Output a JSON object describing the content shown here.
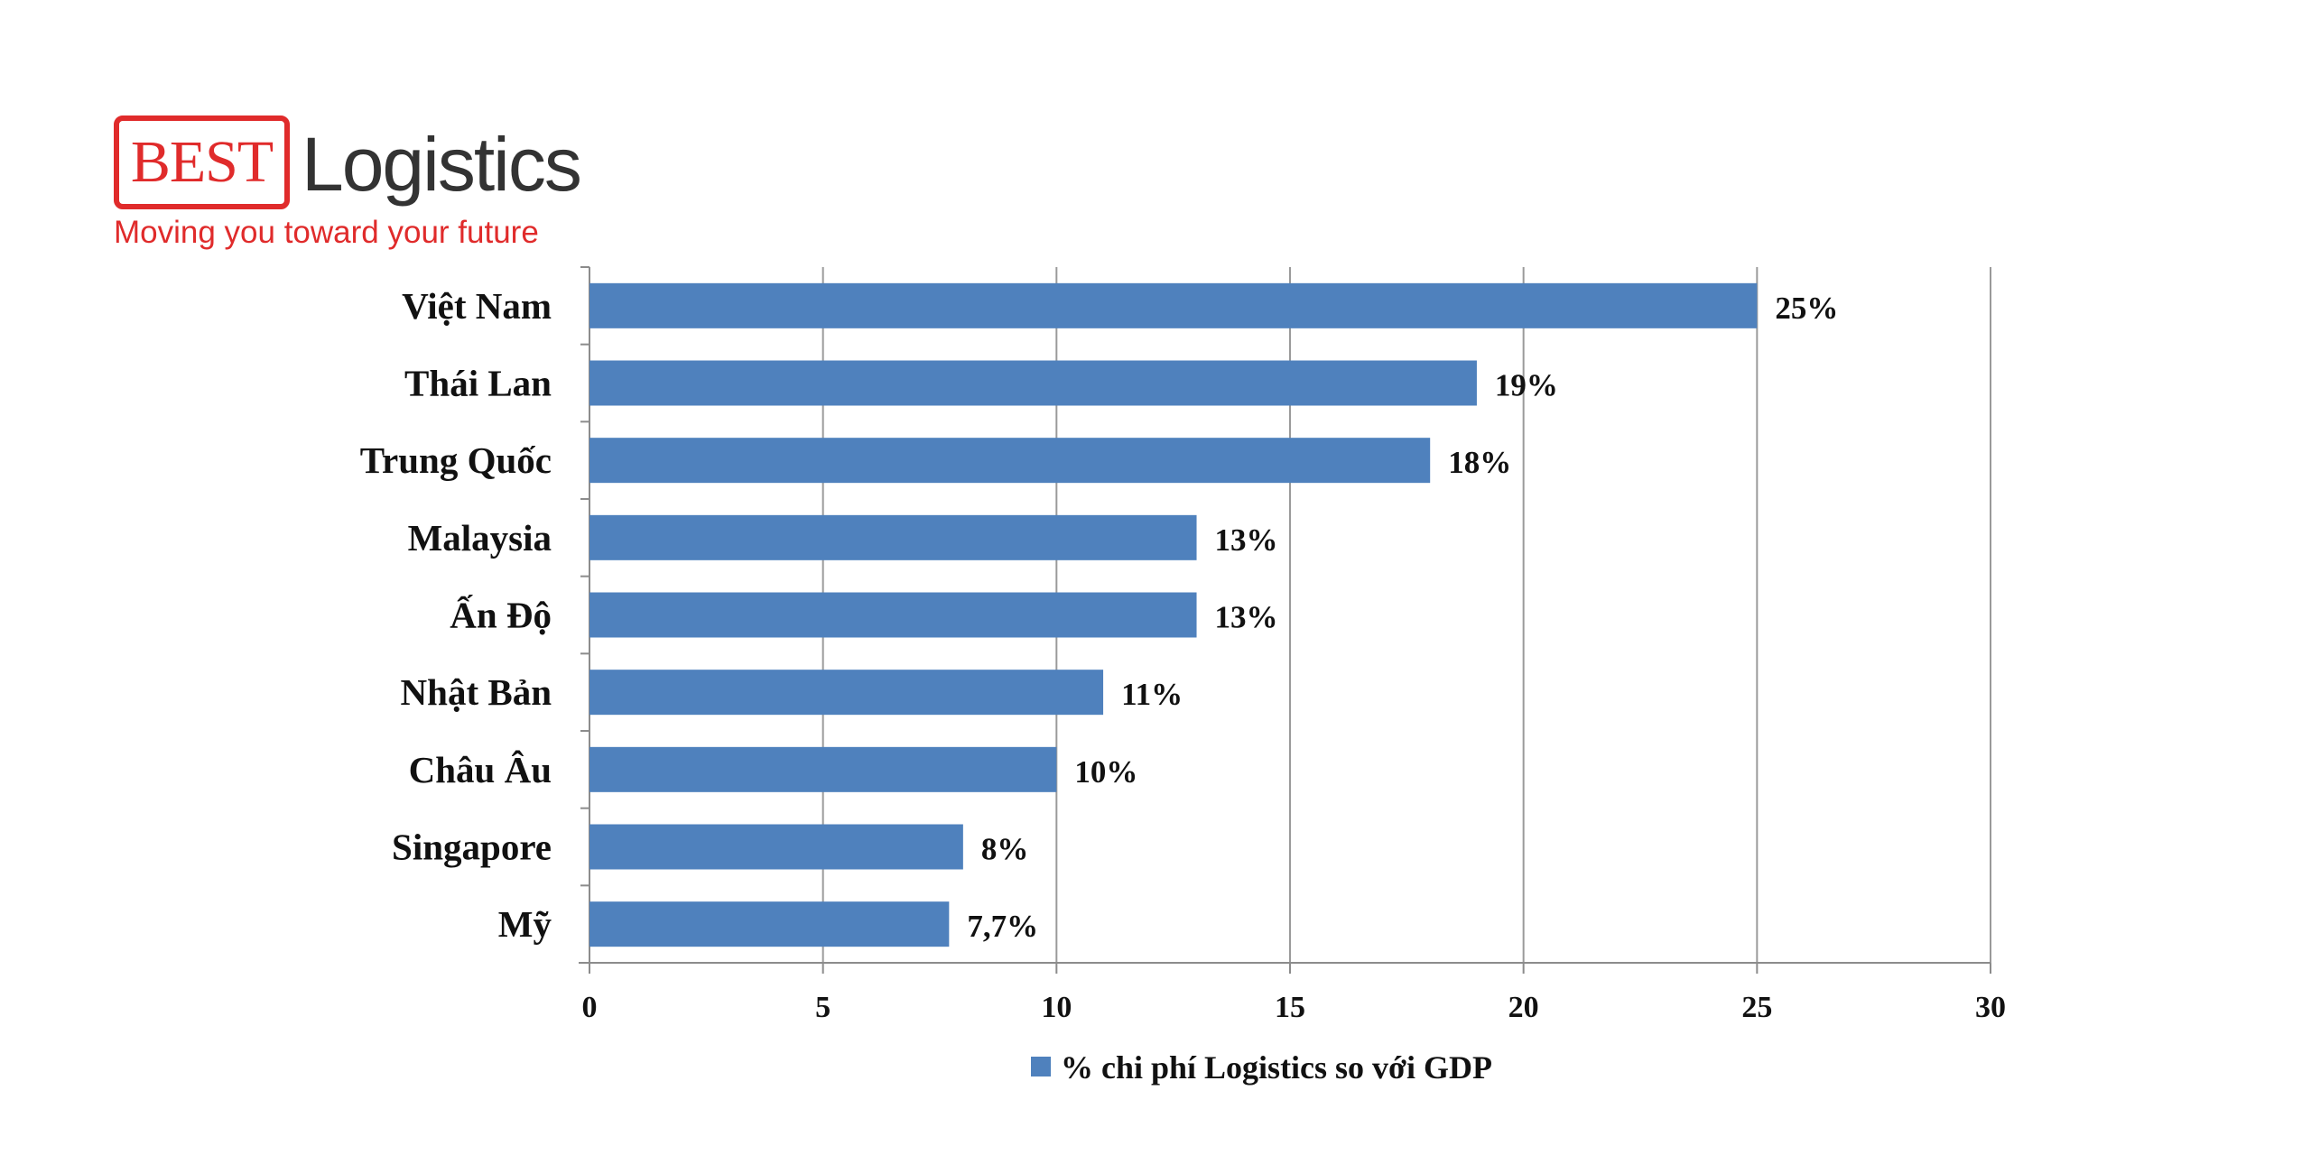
{
  "logo": {
    "box_text": "BEST",
    "word": "Logistics",
    "tagline": "Moving you toward your future"
  },
  "chart_data": {
    "type": "bar",
    "orientation": "horizontal",
    "categories": [
      "Việt Nam",
      "Thái Lan",
      "Trung Quốc",
      "Malaysia",
      "Ấn Độ",
      "Nhật Bản",
      "Châu Âu",
      "Singapore",
      "Mỹ"
    ],
    "values": [
      25,
      19,
      18,
      13,
      13,
      11,
      10,
      8,
      7.7
    ],
    "value_labels": [
      "25%",
      "19%",
      "18%",
      "13%",
      "13%",
      "11%",
      "10%",
      "8%",
      "7,7%"
    ],
    "series": [
      {
        "name": "% chi phí Logistics so với GDP",
        "values": [
          25,
          19,
          18,
          13,
          13,
          11,
          10,
          8,
          7.7
        ]
      }
    ],
    "xticks": [
      "0",
      "5",
      "10",
      "15",
      "20",
      "25",
      "30"
    ],
    "xlim": [
      0,
      30
    ],
    "grid": true,
    "legend_position": "bottom",
    "bar_color": "#4f81bd",
    "grid_color": "#9a9a9a"
  }
}
